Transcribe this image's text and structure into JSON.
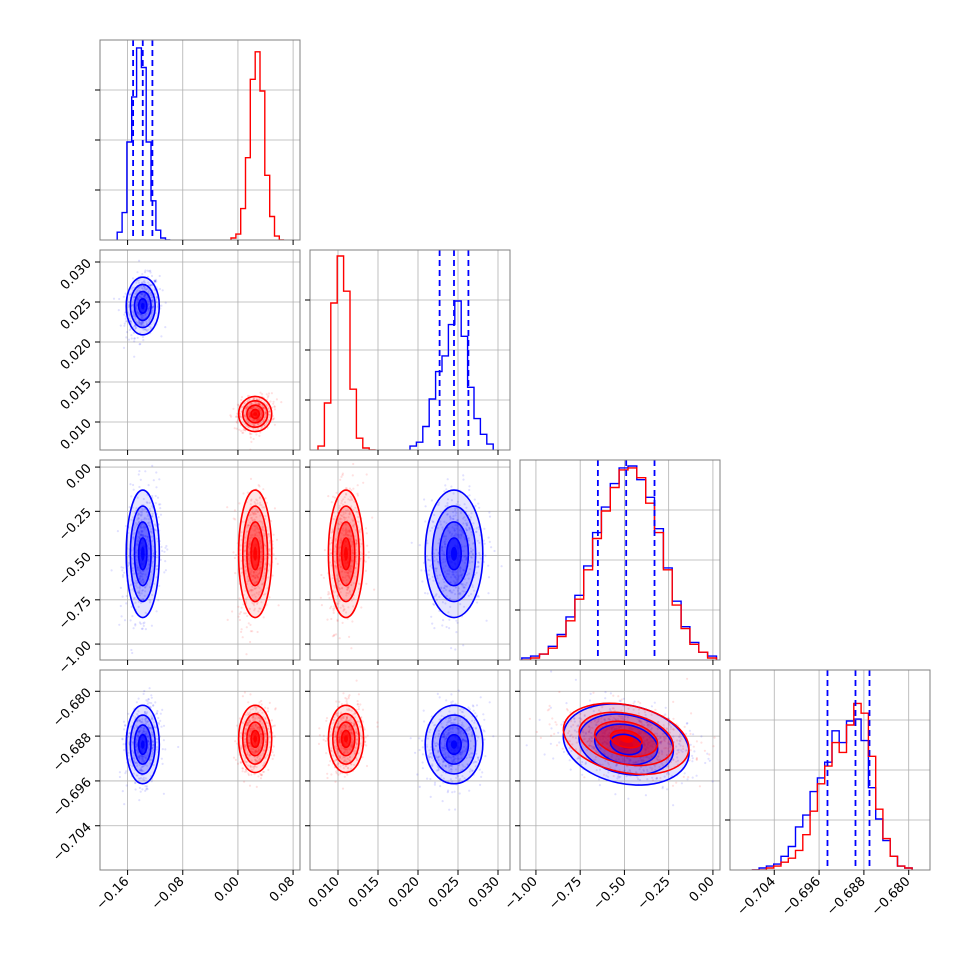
{
  "chart_data": {
    "type": "corner",
    "colors": {
      "blue": "#0000ff",
      "red": "#ff0000",
      "grid": "#b0b0b0",
      "frame": "#808080",
      "text": "#000000"
    },
    "grid": true,
    "parameters": [
      {
        "range": [
          -0.2,
          0.09
        ],
        "ticks": [
          -0.16,
          -0.08,
          0.0,
          0.08
        ],
        "tick_labels": [
          "−0.16",
          "−0.08",
          "0.00",
          "0.08"
        ]
      },
      {
        "range": [
          0.0065,
          0.0315
        ],
        "ticks": [
          0.01,
          0.015,
          0.02,
          0.025,
          0.03
        ],
        "tick_labels": [
          "0.010",
          "0.015",
          "0.020",
          "0.025",
          "0.030"
        ]
      },
      {
        "range": [
          -1.09,
          0.04
        ],
        "ticks": [
          -1.0,
          -0.75,
          -0.5,
          -0.25,
          0.0
        ],
        "tick_labels": [
          "−1.00",
          "−0.75",
          "−0.50",
          "−0.25",
          "0.00"
        ]
      },
      {
        "range": [
          -0.7119,
          -0.6762
        ],
        "ticks": [
          -0.704,
          -0.696,
          -0.688,
          -0.68
        ],
        "tick_labels": [
          "−0.704",
          "−0.696",
          "−0.688",
          "−0.680"
        ]
      }
    ],
    "series": [
      {
        "color": "blue",
        "mean": [
          -0.138,
          0.0245,
          -0.49,
          -0.6895
        ],
        "std": [
          0.012,
          0.0018,
          0.18,
          0.0035
        ],
        "quantiles_shown": true
      },
      {
        "color": "red",
        "mean": [
          0.025,
          0.011,
          -0.49,
          -0.6885
        ],
        "std": [
          0.012,
          0.0011,
          0.18,
          0.003
        ],
        "quantiles_shown": false
      }
    ],
    "quantile_lines": [
      [
        -0.152,
        -0.138,
        -0.124
      ],
      [
        0.0227,
        0.0245,
        0.0263
      ],
      [
        -0.65,
        -0.49,
        -0.33
      ],
      [
        -0.6945,
        -0.6895,
        -0.687
      ]
    ],
    "histograms": [
      {
        "blue": {
          "edges": [
            -0.175,
            -0.168,
            -0.161,
            -0.154,
            -0.147,
            -0.14,
            -0.133,
            -0.126,
            -0.119,
            -0.112,
            -0.105,
            -0.098
          ],
          "counts": [
            0.04,
            0.14,
            0.5,
            0.73,
            0.98,
            0.88,
            0.5,
            0.2,
            0.05,
            0.01,
            0.0
          ]
        },
        "red": {
          "edges": [
            -0.01,
            -0.003,
            0.004,
            0.011,
            0.018,
            0.025,
            0.032,
            0.039,
            0.046,
            0.053,
            0.06,
            0.067
          ],
          "counts": [
            0.01,
            0.03,
            0.16,
            0.42,
            0.82,
            0.96,
            0.76,
            0.33,
            0.12,
            0.02,
            0.0
          ]
        }
      },
      {
        "blue": {
          "edges": [
            0.019,
            0.0198,
            0.0206,
            0.0214,
            0.0222,
            0.023,
            0.0238,
            0.0246,
            0.0254,
            0.0262,
            0.027,
            0.0278,
            0.0286,
            0.0294
          ],
          "counts": [
            0.02,
            0.04,
            0.12,
            0.26,
            0.4,
            0.48,
            0.64,
            0.76,
            0.58,
            0.32,
            0.16,
            0.08,
            0.03
          ]
        },
        "red": {
          "edges": [
            0.0075,
            0.0083,
            0.0091,
            0.0099,
            0.0107,
            0.0115,
            0.0123,
            0.0131,
            0.0139,
            0.0147
          ],
          "counts": [
            0.02,
            0.24,
            0.75,
            0.99,
            0.81,
            0.31,
            0.06,
            0.01,
            0.0
          ]
        }
      },
      {
        "blue": {
          "edges": [
            -1.08,
            -1.03,
            -0.98,
            -0.93,
            -0.88,
            -0.83,
            -0.78,
            -0.73,
            -0.68,
            -0.63,
            -0.58,
            -0.53,
            -0.48,
            -0.43,
            -0.38,
            -0.33,
            -0.28,
            -0.23,
            -0.18,
            -0.13,
            -0.08,
            -0.03,
            0.02
          ],
          "counts": [
            0.01,
            0.02,
            0.03,
            0.07,
            0.13,
            0.22,
            0.33,
            0.48,
            0.65,
            0.78,
            0.9,
            0.98,
            0.99,
            0.92,
            0.83,
            0.67,
            0.47,
            0.3,
            0.17,
            0.09,
            0.04,
            0.02
          ]
        },
        "red": {
          "edges": [
            -1.08,
            -1.03,
            -0.98,
            -0.93,
            -0.88,
            -0.83,
            -0.78,
            -0.73,
            -0.68,
            -0.63,
            -0.58,
            -0.53,
            -0.48,
            -0.43,
            -0.38,
            -0.33,
            -0.28,
            -0.23,
            -0.18,
            -0.13,
            -0.08,
            -0.03,
            0.02
          ],
          "counts": [
            0.0,
            0.01,
            0.03,
            0.06,
            0.12,
            0.2,
            0.31,
            0.46,
            0.62,
            0.76,
            0.88,
            0.97,
            0.98,
            0.93,
            0.8,
            0.65,
            0.46,
            0.28,
            0.16,
            0.08,
            0.04,
            0.01
          ]
        }
      },
      {
        "blue": {
          "edges": [
            -0.708,
            -0.7067,
            -0.7054,
            -0.7041,
            -0.7028,
            -0.7015,
            -0.7002,
            -0.6989,
            -0.6976,
            -0.6963,
            -0.695,
            -0.6937,
            -0.6924,
            -0.6911,
            -0.6898,
            -0.6885,
            -0.6872,
            -0.6859,
            -0.6846,
            -0.6833,
            -0.682,
            -0.6807,
            -0.6794
          ],
          "counts": [
            0.0,
            0.01,
            0.02,
            0.03,
            0.07,
            0.12,
            0.22,
            0.28,
            0.4,
            0.47,
            0.55,
            0.71,
            0.65,
            0.76,
            0.77,
            0.66,
            0.42,
            0.26,
            0.15,
            0.07,
            0.02,
            0.01
          ]
        },
        "red": {
          "edges": [
            -0.708,
            -0.7067,
            -0.7054,
            -0.7041,
            -0.7028,
            -0.7015,
            -0.7002,
            -0.6989,
            -0.6976,
            -0.6963,
            -0.695,
            -0.6937,
            -0.6924,
            -0.6911,
            -0.6898,
            -0.6885,
            -0.6872,
            -0.6859,
            -0.6846,
            -0.6833,
            -0.682,
            -0.6807,
            -0.6794
          ],
          "counts": [
            0.0,
            0.0,
            0.01,
            0.02,
            0.04,
            0.06,
            0.1,
            0.18,
            0.3,
            0.44,
            0.53,
            0.65,
            0.6,
            0.74,
            0.85,
            0.8,
            0.58,
            0.31,
            0.16,
            0.07,
            0.02,
            0.01
          ]
        }
      }
    ],
    "title": "",
    "axis_labels": [
      "",
      "",
      "",
      ""
    ]
  }
}
